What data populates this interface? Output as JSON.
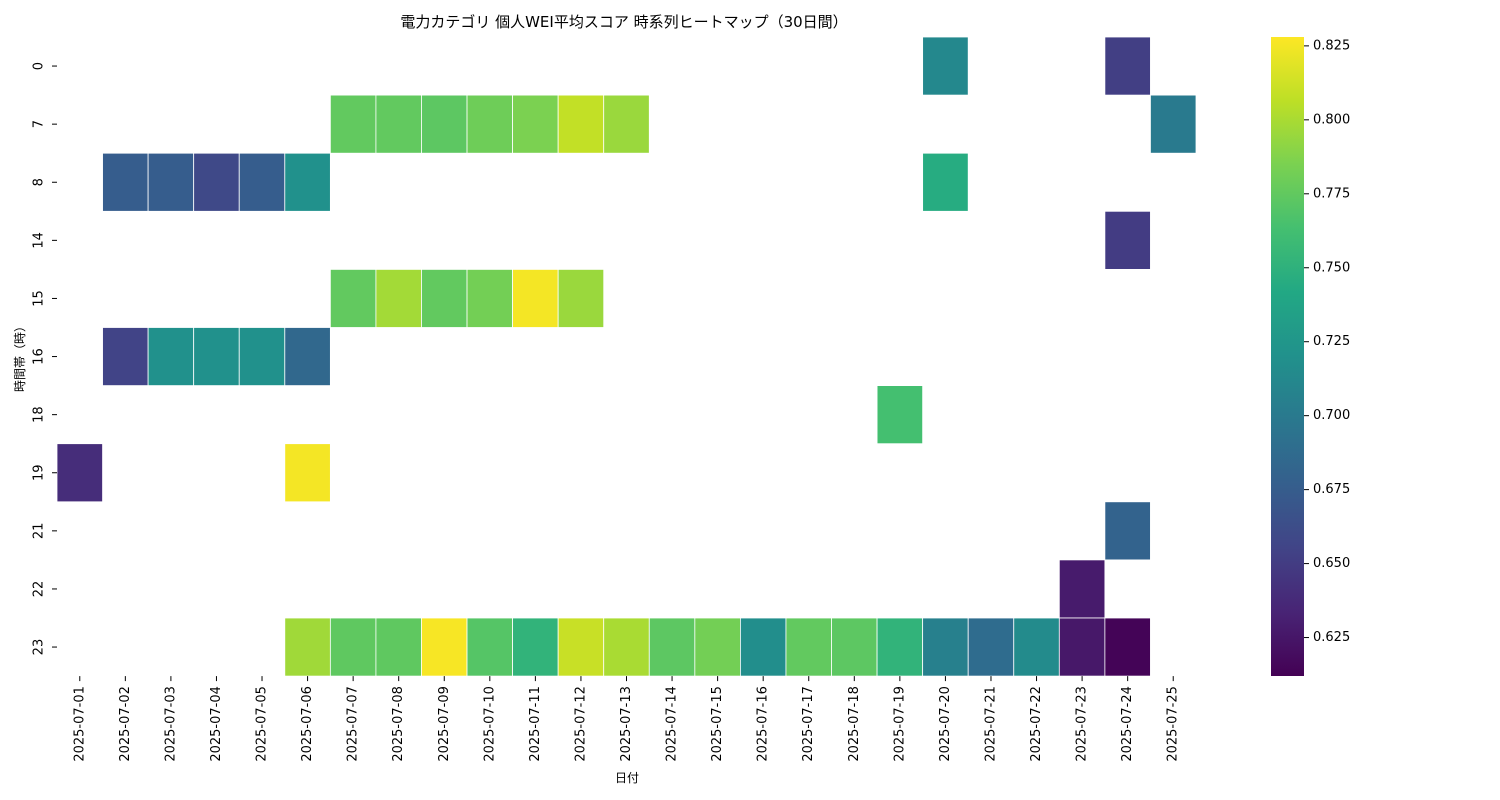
{
  "chart_data": {
    "type": "heatmap",
    "title": "電力カテゴリ 個人WEI平均スコア 時系列ヒートマップ（30日間）",
    "xlabel": "日付",
    "ylabel": "時間帯（時）",
    "colormap": "viridis",
    "vmin": 0.612,
    "vmax": 0.828,
    "colorbar_ticks": [
      "0.625",
      "0.650",
      "0.675",
      "0.700",
      "0.725",
      "0.750",
      "0.775",
      "0.800",
      "0.825"
    ],
    "x": [
      "2025-07-01",
      "2025-07-02",
      "2025-07-03",
      "2025-07-04",
      "2025-07-05",
      "2025-07-06",
      "2025-07-07",
      "2025-07-08",
      "2025-07-09",
      "2025-07-10",
      "2025-07-11",
      "2025-07-12",
      "2025-07-13",
      "2025-07-14",
      "2025-07-15",
      "2025-07-16",
      "2025-07-17",
      "2025-07-18",
      "2025-07-19",
      "2025-07-20",
      "2025-07-21",
      "2025-07-22",
      "2025-07-23",
      "2025-07-24",
      "2025-07-25"
    ],
    "y": [
      "0",
      "7",
      "8",
      "14",
      "15",
      "16",
      "18",
      "19",
      "21",
      "22",
      "23"
    ],
    "cells": [
      {
        "x": "2025-07-20",
        "y": "0",
        "value": 0.712
      },
      {
        "x": "2025-07-24",
        "y": "0",
        "value": 0.652
      },
      {
        "x": "2025-07-07",
        "y": "7",
        "value": 0.775
      },
      {
        "x": "2025-07-08",
        "y": "7",
        "value": 0.775
      },
      {
        "x": "2025-07-09",
        "y": "7",
        "value": 0.773
      },
      {
        "x": "2025-07-10",
        "y": "7",
        "value": 0.78
      },
      {
        "x": "2025-07-11",
        "y": "7",
        "value": 0.785
      },
      {
        "x": "2025-07-12",
        "y": "7",
        "value": 0.808
      },
      {
        "x": "2025-07-13",
        "y": "7",
        "value": 0.795
      },
      {
        "x": "2025-07-25",
        "y": "7",
        "value": 0.7
      },
      {
        "x": "2025-07-02",
        "y": "8",
        "value": 0.675
      },
      {
        "x": "2025-07-03",
        "y": "8",
        "value": 0.675
      },
      {
        "x": "2025-07-04",
        "y": "8",
        "value": 0.659
      },
      {
        "x": "2025-07-05",
        "y": "8",
        "value": 0.675
      },
      {
        "x": "2025-07-06",
        "y": "8",
        "value": 0.72
      },
      {
        "x": "2025-07-20",
        "y": "8",
        "value": 0.745
      },
      {
        "x": "2025-07-24",
        "y": "14",
        "value": 0.65
      },
      {
        "x": "2025-07-07",
        "y": "15",
        "value": 0.775
      },
      {
        "x": "2025-07-08",
        "y": "15",
        "value": 0.798
      },
      {
        "x": "2025-07-09",
        "y": "15",
        "value": 0.775
      },
      {
        "x": "2025-07-10",
        "y": "15",
        "value": 0.782
      },
      {
        "x": "2025-07-11",
        "y": "15",
        "value": 0.825
      },
      {
        "x": "2025-07-12",
        "y": "15",
        "value": 0.795
      },
      {
        "x": "2025-07-02",
        "y": "16",
        "value": 0.655
      },
      {
        "x": "2025-07-03",
        "y": "16",
        "value": 0.72
      },
      {
        "x": "2025-07-04",
        "y": "16",
        "value": 0.72
      },
      {
        "x": "2025-07-05",
        "y": "16",
        "value": 0.72
      },
      {
        "x": "2025-07-06",
        "y": "16",
        "value": 0.685
      },
      {
        "x": "2025-07-19",
        "y": "18",
        "value": 0.763
      },
      {
        "x": "2025-07-01",
        "y": "19",
        "value": 0.64
      },
      {
        "x": "2025-07-06",
        "y": "19",
        "value": 0.825
      },
      {
        "x": "2025-07-24",
        "y": "21",
        "value": 0.68
      },
      {
        "x": "2025-07-23",
        "y": "22",
        "value": 0.628
      },
      {
        "x": "2025-07-06",
        "y": "23",
        "value": 0.797
      },
      {
        "x": "2025-07-07",
        "y": "23",
        "value": 0.774
      },
      {
        "x": "2025-07-08",
        "y": "23",
        "value": 0.774
      },
      {
        "x": "2025-07-09",
        "y": "23",
        "value": 0.826
      },
      {
        "x": "2025-07-10",
        "y": "23",
        "value": 0.77
      },
      {
        "x": "2025-07-11",
        "y": "23",
        "value": 0.752
      },
      {
        "x": "2025-07-12",
        "y": "23",
        "value": 0.81
      },
      {
        "x": "2025-07-13",
        "y": "23",
        "value": 0.8
      },
      {
        "x": "2025-07-14",
        "y": "23",
        "value": 0.773
      },
      {
        "x": "2025-07-15",
        "y": "23",
        "value": 0.782
      },
      {
        "x": "2025-07-16",
        "y": "23",
        "value": 0.717
      },
      {
        "x": "2025-07-17",
        "y": "23",
        "value": 0.775
      },
      {
        "x": "2025-07-18",
        "y": "23",
        "value": 0.773
      },
      {
        "x": "2025-07-19",
        "y": "23",
        "value": 0.752
      },
      {
        "x": "2025-07-20",
        "y": "23",
        "value": 0.705
      },
      {
        "x": "2025-07-21",
        "y": "23",
        "value": 0.688
      },
      {
        "x": "2025-07-22",
        "y": "23",
        "value": 0.715
      },
      {
        "x": "2025-07-23",
        "y": "23",
        "value": 0.626
      },
      {
        "x": "2025-07-24",
        "y": "23",
        "value": 0.614
      }
    ]
  }
}
